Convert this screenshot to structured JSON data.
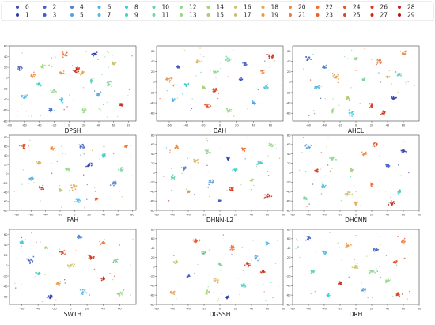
{
  "figure": {
    "legend": {
      "entries": [
        "0",
        "1",
        "2",
        "3",
        "4",
        "5",
        "6",
        "7",
        "8",
        "9",
        "10",
        "11",
        "12",
        "13",
        "14",
        "15",
        "16",
        "17",
        "18",
        "19",
        "20",
        "21",
        "22",
        "23",
        "24",
        "25",
        "26",
        "27",
        "28",
        "29"
      ],
      "colors": [
        "#3b4fb0",
        "#2a3da8",
        "#4463c7",
        "#3e5cc4",
        "#4f7fd0",
        "#5aa0dc",
        "#4fb3e0",
        "#47c0e6",
        "#41cbd8",
        "#40d0c2",
        "#5ed4b0",
        "#7bd7a0",
        "#8fd894",
        "#9ad887",
        "#a7d17a",
        "#b5ca6e",
        "#c8c06b",
        "#d8b560",
        "#e2a851",
        "#e89948",
        "#ee8a41",
        "#ef7c38",
        "#ef6d31",
        "#ee5f2b",
        "#ea5125",
        "#e44520",
        "#db3a1b",
        "#cf2e16",
        "#c22411",
        "#b0180c"
      ]
    },
    "panels": [
      {
        "caption": "DPSH"
      },
      {
        "caption": "DAH"
      },
      {
        "caption": "AHCL"
      },
      {
        "caption": "FAH"
      },
      {
        "caption": "DHNN-L2"
      },
      {
        "caption": "DHCNN"
      },
      {
        "caption": "SWTH"
      },
      {
        "caption": "DGSSH"
      },
      {
        "caption": "DRH"
      }
    ]
  },
  "chart_data": [
    {
      "type": "scatter",
      "title": "DPSH",
      "xlim": [
        -80,
        90
      ],
      "ylim": [
        -80,
        60
      ],
      "xticks": [
        -80,
        -60,
        -40,
        -20,
        0,
        20,
        40,
        60,
        80
      ],
      "yticks": [
        -80,
        -60,
        -40,
        -20,
        0,
        20,
        40,
        60
      ],
      "clusters": [
        {
          "class": 25,
          "x": 12,
          "y": 18
        },
        {
          "class": 18,
          "x": 18,
          "y": 10
        },
        {
          "class": 28,
          "x": 8,
          "y": 14
        },
        {
          "class": 14,
          "x": -35,
          "y": 22
        },
        {
          "class": 3,
          "x": -66,
          "y": 18
        },
        {
          "class": 20,
          "x": -50,
          "y": 5
        },
        {
          "class": 9,
          "x": -40,
          "y": -12
        },
        {
          "class": 12,
          "x": -20,
          "y": -25
        },
        {
          "class": 7,
          "x": -10,
          "y": -40
        },
        {
          "class": 2,
          "x": -25,
          "y": -60
        },
        {
          "class": 5,
          "x": 40,
          "y": -30
        },
        {
          "class": 11,
          "x": 55,
          "y": -10
        },
        {
          "class": 16,
          "x": 60,
          "y": 28
        },
        {
          "class": 1,
          "x": 35,
          "y": 45
        },
        {
          "class": 22,
          "x": -5,
          "y": 45
        },
        {
          "class": 27,
          "x": 70,
          "y": -50
        },
        {
          "class": 13,
          "x": 20,
          "y": -60
        },
        {
          "class": 6,
          "x": -60,
          "y": -35
        },
        {
          "class": 19,
          "x": -10,
          "y": 10
        },
        {
          "class": 10,
          "x": 30,
          "y": -5
        }
      ]
    },
    {
      "type": "scatter",
      "title": "DAH",
      "xlim": [
        -75,
        75
      ],
      "ylim": [
        -75,
        70
      ],
      "xticks": [
        -60,
        -40,
        -20,
        0,
        20,
        40,
        60
      ],
      "yticks": [
        -60,
        -40,
        -20,
        0,
        20,
        40,
        60
      ],
      "clusters": [
        {
          "class": 14,
          "x": -20,
          "y": -10
        },
        {
          "class": 26,
          "x": -6,
          "y": -15
        },
        {
          "class": 9,
          "x": -40,
          "y": -5
        },
        {
          "class": 3,
          "x": -50,
          "y": 30
        },
        {
          "class": 17,
          "x": -25,
          "y": 40
        },
        {
          "class": 11,
          "x": 10,
          "y": 45
        },
        {
          "class": 2,
          "x": 30,
          "y": 35
        },
        {
          "class": 21,
          "x": 50,
          "y": 20
        },
        {
          "class": 8,
          "x": 55,
          "y": -10
        },
        {
          "class": 5,
          "x": 40,
          "y": -40
        },
        {
          "class": 13,
          "x": 10,
          "y": -55
        },
        {
          "class": 24,
          "x": -15,
          "y": -45
        },
        {
          "class": 6,
          "x": -55,
          "y": -35
        },
        {
          "class": 19,
          "x": -60,
          "y": 5
        },
        {
          "class": 28,
          "x": 60,
          "y": 50
        },
        {
          "class": 0,
          "x": 25,
          "y": 5
        },
        {
          "class": 12,
          "x": -5,
          "y": 20
        }
      ]
    },
    {
      "type": "scatter",
      "title": "AHCL",
      "xlim": [
        -80,
        80
      ],
      "ylim": [
        -75,
        70
      ],
      "xticks": [
        -60,
        -40,
        -20,
        0,
        20,
        40,
        60
      ],
      "yticks": [
        -60,
        -40,
        -20,
        0,
        20,
        40,
        60
      ],
      "clusters": [
        {
          "class": 12,
          "x": 0,
          "y": 45
        },
        {
          "class": 4,
          "x": -40,
          "y": 30
        },
        {
          "class": 22,
          "x": 30,
          "y": 40
        },
        {
          "class": 9,
          "x": 55,
          "y": 15
        },
        {
          "class": 1,
          "x": 48,
          "y": -30
        },
        {
          "class": 26,
          "x": 20,
          "y": -45
        },
        {
          "class": 15,
          "x": -10,
          "y": -30
        },
        {
          "class": 6,
          "x": -50,
          "y": -10
        },
        {
          "class": 18,
          "x": -25,
          "y": 10
        },
        {
          "class": 11,
          "x": 10,
          "y": 5
        },
        {
          "class": 3,
          "x": -60,
          "y": 45
        },
        {
          "class": 20,
          "x": 60,
          "y": 55
        },
        {
          "class": 13,
          "x": -30,
          "y": -55
        },
        {
          "class": 27,
          "x": 35,
          "y": -60
        },
        {
          "class": 8,
          "x": -5,
          "y": -60
        },
        {
          "class": 16,
          "x": 40,
          "y": 10
        }
      ]
    },
    {
      "type": "scatter",
      "title": "FAH",
      "xlim": [
        -90,
        85
      ],
      "ylim": [
        -80,
        85
      ],
      "xticks": [
        -80,
        -60,
        -40,
        -20,
        0,
        20,
        40,
        60,
        80
      ],
      "yticks": [
        -80,
        -60,
        -40,
        -20,
        0,
        20,
        40,
        60,
        80
      ],
      "clusters": [
        {
          "class": 15,
          "x": -20,
          "y": -35
        },
        {
          "class": 27,
          "x": -45,
          "y": -30
        },
        {
          "class": 18,
          "x": 0,
          "y": -30
        },
        {
          "class": 6,
          "x": -60,
          "y": -10
        },
        {
          "class": 20,
          "x": -30,
          "y": 55
        },
        {
          "class": 2,
          "x": 10,
          "y": 60
        },
        {
          "class": 9,
          "x": 40,
          "y": 40
        },
        {
          "class": 11,
          "x": 65,
          "y": 10
        },
        {
          "class": 4,
          "x": 55,
          "y": -20
        },
        {
          "class": 23,
          "x": 30,
          "y": -55
        },
        {
          "class": 13,
          "x": -10,
          "y": 10
        },
        {
          "class": 1,
          "x": 20,
          "y": 20
        },
        {
          "class": 17,
          "x": -50,
          "y": 25
        },
        {
          "class": 7,
          "x": 5,
          "y": -60
        },
        {
          "class": 25,
          "x": -70,
          "y": 60
        },
        {
          "class": 21,
          "x": 70,
          "y": 60
        }
      ]
    },
    {
      "type": "scatter",
      "title": "DHNN-L2",
      "xlim": [
        -80,
        80
      ],
      "ylim": [
        -80,
        80
      ],
      "xticks": [
        -80,
        -60,
        -40,
        -20,
        0,
        20,
        40,
        60,
        80
      ],
      "yticks": [
        -80,
        -60,
        -40,
        -20,
        0,
        20,
        40,
        60,
        80
      ],
      "clusters": [
        {
          "class": 4,
          "x": -45,
          "y": 10
        },
        {
          "class": 17,
          "x": -30,
          "y": 25
        },
        {
          "class": 12,
          "x": -15,
          "y": 45
        },
        {
          "class": 1,
          "x": 10,
          "y": 30
        },
        {
          "class": 22,
          "x": 30,
          "y": 50
        },
        {
          "class": 8,
          "x": 50,
          "y": 20
        },
        {
          "class": 14,
          "x": 40,
          "y": -15
        },
        {
          "class": 26,
          "x": 15,
          "y": -35
        },
        {
          "class": 5,
          "x": -10,
          "y": -20
        },
        {
          "class": 19,
          "x": -40,
          "y": -40
        },
        {
          "class": 10,
          "x": -60,
          "y": -10
        },
        {
          "class": 28,
          "x": 60,
          "y": -50
        },
        {
          "class": 3,
          "x": 0,
          "y": -60
        },
        {
          "class": 20,
          "x": -55,
          "y": 55
        },
        {
          "class": 13,
          "x": 65,
          "y": 60
        },
        {
          "class": 9,
          "x": 20,
          "y": 5
        }
      ]
    },
    {
      "type": "scatter",
      "title": "DHCNN",
      "xlim": [
        -80,
        80
      ],
      "ylim": [
        -80,
        80
      ],
      "xticks": [
        -80,
        -60,
        -40,
        -20,
        0,
        20,
        40,
        60,
        80
      ],
      "yticks": [
        -80,
        -60,
        -40,
        -20,
        0,
        20,
        40,
        60,
        80
      ],
      "clusters": [
        {
          "class": 3,
          "x": 40,
          "y": 15
        },
        {
          "class": 20,
          "x": 10,
          "y": 40
        },
        {
          "class": 12,
          "x": -30,
          "y": 30
        },
        {
          "class": 26,
          "x": -50,
          "y": 5
        },
        {
          "class": 7,
          "x": -40,
          "y": -30
        },
        {
          "class": 16,
          "x": -10,
          "y": -45
        },
        {
          "class": 22,
          "x": 20,
          "y": -25
        },
        {
          "class": 9,
          "x": 55,
          "y": -40
        },
        {
          "class": 1,
          "x": 60,
          "y": 45
        },
        {
          "class": 14,
          "x": -5,
          "y": 5
        },
        {
          "class": 24,
          "x": 25,
          "y": 60
        },
        {
          "class": 5,
          "x": -60,
          "y": 55
        },
        {
          "class": 18,
          "x": 0,
          "y": -65
        },
        {
          "class": 11,
          "x": -65,
          "y": -55
        },
        {
          "class": 28,
          "x": 45,
          "y": -65
        }
      ]
    },
    {
      "type": "scatter",
      "title": "SWTH",
      "xlim": [
        -75,
        80
      ],
      "ylim": [
        -75,
        70
      ],
      "xticks": [
        -60,
        -40,
        -20,
        0,
        20,
        40,
        60
      ],
      "yticks": [
        -60,
        -40,
        -20,
        0,
        20,
        40,
        60
      ],
      "clusters": [
        {
          "class": 14,
          "x": -30,
          "y": 35
        },
        {
          "class": 25,
          "x": -10,
          "y": 25
        },
        {
          "class": 2,
          "x": -50,
          "y": 10
        },
        {
          "class": 9,
          "x": -40,
          "y": -15
        },
        {
          "class": 19,
          "x": -15,
          "y": -35
        },
        {
          "class": 6,
          "x": 15,
          "y": -50
        },
        {
          "class": 28,
          "x": 40,
          "y": -25
        },
        {
          "class": 11,
          "x": 55,
          "y": 10
        },
        {
          "class": 21,
          "x": 40,
          "y": 45
        },
        {
          "class": 4,
          "x": 10,
          "y": 55
        },
        {
          "class": 16,
          "x": 0,
          "y": 0
        },
        {
          "class": 27,
          "x": 25,
          "y": 15
        },
        {
          "class": 8,
          "x": -60,
          "y": 45
        },
        {
          "class": 13,
          "x": 60,
          "y": -55
        },
        {
          "class": 1,
          "x": -25,
          "y": -60
        }
      ]
    },
    {
      "type": "scatter",
      "title": "DGSSH",
      "xlim": [
        -80,
        80
      ],
      "ylim": [
        -80,
        80
      ],
      "xticks": [
        -80,
        -60,
        -40,
        -20,
        0,
        20,
        40,
        60,
        80
      ],
      "yticks": [
        -80,
        -60,
        -40,
        -20,
        0,
        20,
        40,
        60,
        80
      ],
      "clusters": [
        {
          "class": 12,
          "x": -20,
          "y": 30
        },
        {
          "class": 22,
          "x": 15,
          "y": 40
        },
        {
          "class": 5,
          "x": 45,
          "y": 20
        },
        {
          "class": 27,
          "x": 55,
          "y": -10
        },
        {
          "class": 9,
          "x": 30,
          "y": -40
        },
        {
          "class": 17,
          "x": -5,
          "y": -30
        },
        {
          "class": 2,
          "x": -40,
          "y": -20
        },
        {
          "class": 15,
          "x": -55,
          "y": 10
        },
        {
          "class": 24,
          "x": -30,
          "y": 55
        },
        {
          "class": 7,
          "x": 60,
          "y": 50
        },
        {
          "class": 11,
          "x": 0,
          "y": 5
        },
        {
          "class": 19,
          "x": -60,
          "y": -55
        },
        {
          "class": 1,
          "x": 10,
          "y": -65
        },
        {
          "class": 26,
          "x": 35,
          "y": 5
        },
        {
          "class": 14,
          "x": -15,
          "y": -55
        }
      ]
    },
    {
      "type": "scatter",
      "title": "DRH",
      "xlim": [
        -80,
        80
      ],
      "ylim": [
        -80,
        80
      ],
      "xticks": [
        -80,
        -60,
        -40,
        -20,
        0,
        20,
        40,
        60,
        80
      ],
      "yticks": [
        -80,
        -60,
        -40,
        -20,
        0,
        20,
        40,
        60,
        80
      ],
      "clusters": [
        {
          "class": 7,
          "x": -40,
          "y": 30
        },
        {
          "class": 19,
          "x": -10,
          "y": 45
        },
        {
          "class": 2,
          "x": 25,
          "y": 35
        },
        {
          "class": 24,
          "x": 50,
          "y": 10
        },
        {
          "class": 13,
          "x": 40,
          "y": -30
        },
        {
          "class": 5,
          "x": 10,
          "y": -50
        },
        {
          "class": 28,
          "x": -20,
          "y": -35
        },
        {
          "class": 10,
          "x": -55,
          "y": -10
        },
        {
          "class": 16,
          "x": 0,
          "y": 0
        },
        {
          "class": 21,
          "x": 60,
          "y": 55
        },
        {
          "class": 3,
          "x": -60,
          "y": 60
        },
        {
          "class": 12,
          "x": 20,
          "y": -10
        },
        {
          "class": 8,
          "x": -35,
          "y": -60
        },
        {
          "class": 26,
          "x": 55,
          "y": -60
        }
      ]
    }
  ]
}
